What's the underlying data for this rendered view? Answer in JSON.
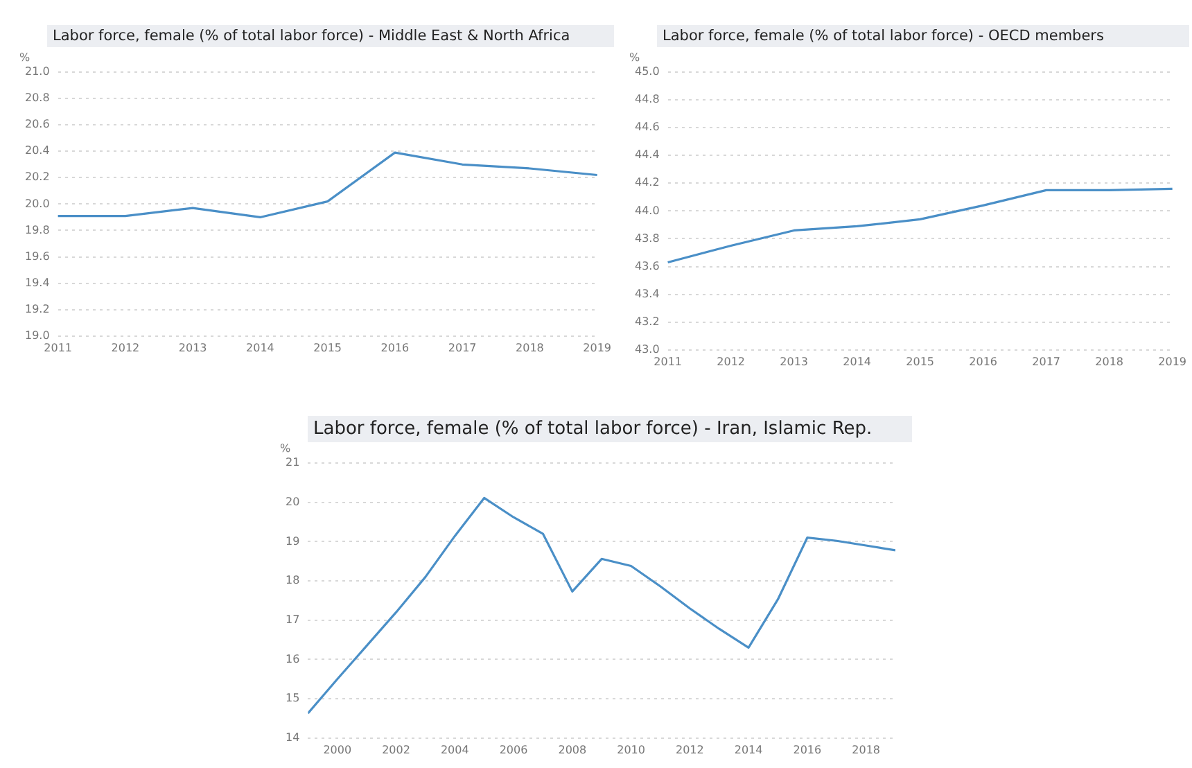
{
  "chart_data": [
    {
      "type": "line",
      "title": "Labor force, female (% of total labor force) - Middle East & North Africa",
      "ylabel": "%",
      "categories": [
        "2011",
        "2012",
        "2013",
        "2014",
        "2015",
        "2016",
        "2017",
        "2018",
        "2019"
      ],
      "series": [
        {
          "color": "#4a8fc7",
          "values": [
            19.91,
            19.91,
            19.97,
            19.9,
            20.02,
            20.39,
            20.3,
            20.27,
            20.22
          ]
        }
      ],
      "ylim": [
        19.0,
        21.0
      ],
      "yticks": [
        {
          "value": 19,
          "label": "19.0"
        },
        {
          "value": 19.2,
          "label": "19.2"
        },
        {
          "value": 19.4,
          "label": "19.4"
        },
        {
          "value": 19.6,
          "label": "19.6"
        },
        {
          "value": 19.8,
          "label": "19.8"
        },
        {
          "value": 20,
          "label": "20.0"
        },
        {
          "value": 20.2,
          "label": "20.2"
        },
        {
          "value": 20.4,
          "label": "20.4"
        },
        {
          "value": 20.6,
          "label": "20.6"
        },
        {
          "value": 20.8,
          "label": "20.8"
        },
        {
          "value": 21,
          "label": "21.0"
        }
      ],
      "grid": "y",
      "marker": "none",
      "line_style": "solid"
    },
    {
      "type": "line",
      "title": "Labor force, female (% of total labor force) - OECD members",
      "ylabel": "%",
      "categories": [
        "2011",
        "2012",
        "2013",
        "2014",
        "2015",
        "2016",
        "2017",
        "2018",
        "2019"
      ],
      "series": [
        {
          "color": "#4a8fc7",
          "values": [
            43.63,
            43.75,
            43.86,
            43.89,
            43.94,
            44.04,
            44.15,
            44.15,
            44.16
          ]
        }
      ],
      "ylim": [
        43.0,
        45.0
      ],
      "yticks": [
        {
          "value": 43,
          "label": "43.0"
        },
        {
          "value": 43.2,
          "label": "43.2"
        },
        {
          "value": 43.4,
          "label": "43.4"
        },
        {
          "value": 43.6,
          "label": "43.6"
        },
        {
          "value": 43.8,
          "label": "43.8"
        },
        {
          "value": 44,
          "label": "44.0"
        },
        {
          "value": 44.2,
          "label": "44.2"
        },
        {
          "value": 44.4,
          "label": "44.4"
        },
        {
          "value": 44.6,
          "label": "44.6"
        },
        {
          "value": 44.8,
          "label": "44.8"
        },
        {
          "value": 45,
          "label": "45.0"
        }
      ],
      "grid": "y",
      "marker": "none",
      "line_style": "solid"
    },
    {
      "type": "line",
      "title": "Labor force, female (% of total labor force) - Iran, Islamic Rep.",
      "ylabel": "%",
      "x": [
        1999,
        2000,
        2001,
        2002,
        2003,
        2004,
        2005,
        2006,
        2007,
        2008,
        2009,
        2010,
        2011,
        2012,
        2013,
        2014,
        2015,
        2016,
        2017,
        2018,
        2019
      ],
      "series": [
        {
          "color": "#4a8fc7",
          "values": [
            14.63,
            15.5,
            16.35,
            17.2,
            18.1,
            19.14,
            20.11,
            19.62,
            19.2,
            17.73,
            18.56,
            18.38,
            17.86,
            17.3,
            16.78,
            16.3,
            17.53,
            19.1,
            19.02,
            18.9,
            18.78
          ]
        }
      ],
      "xlim": [
        1999,
        2019
      ],
      "xticks": [
        2000,
        2002,
        2004,
        2006,
        2008,
        2010,
        2012,
        2014,
        2016,
        2018
      ],
      "ylim": [
        14,
        21
      ],
      "yticks": [
        14,
        15,
        16,
        17,
        18,
        19,
        20,
        21
      ],
      "grid": "y",
      "marker": "none",
      "line_style": "solid"
    }
  ]
}
